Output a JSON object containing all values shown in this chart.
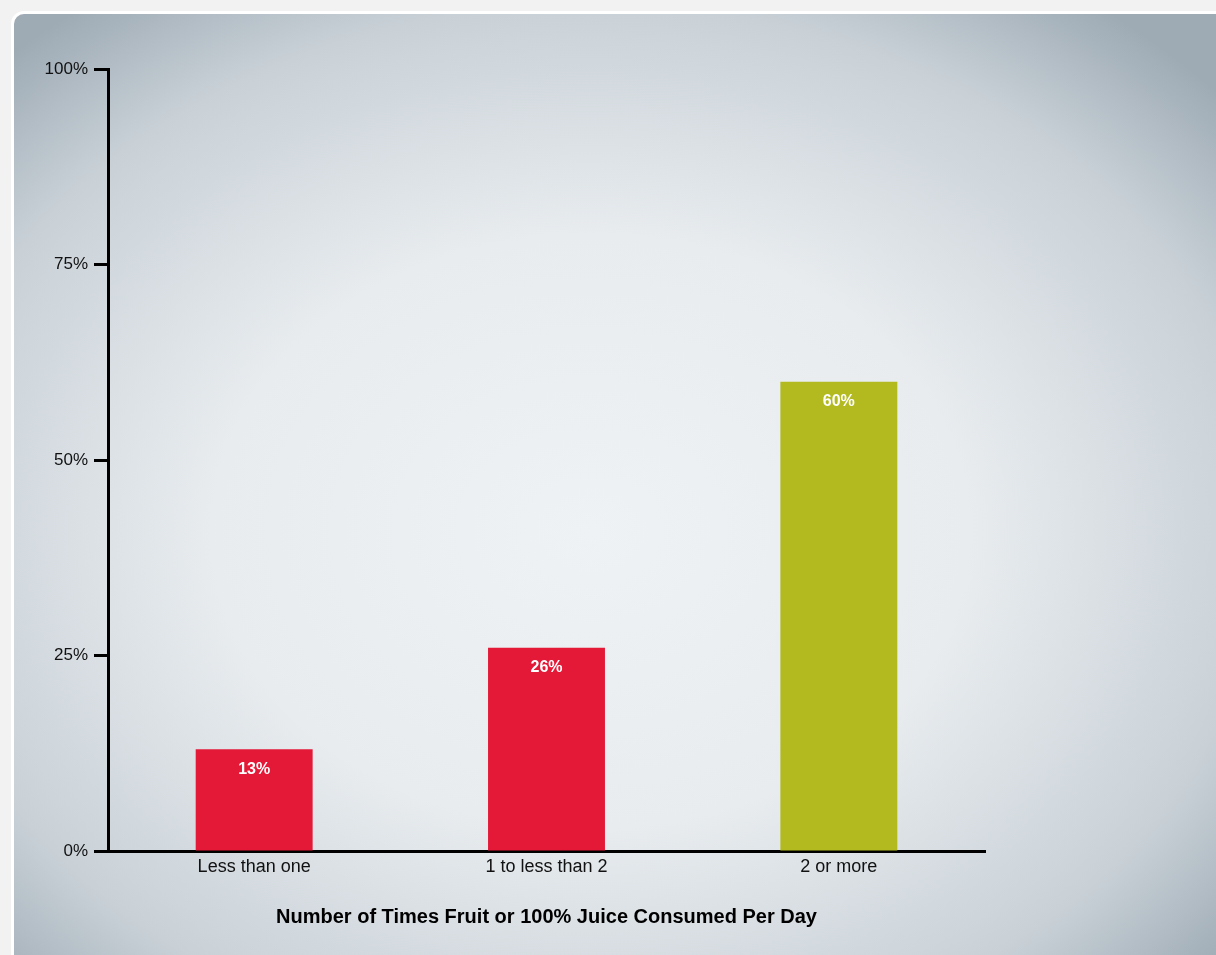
{
  "chart_data": {
    "type": "bar",
    "xlabel": "Number of Times Fruit or 100% Juice Consumed Per Day",
    "categories": [
      "Less than one",
      "1 to less than 2",
      "2 or more"
    ],
    "values": [
      13,
      26,
      60
    ],
    "colors": [
      "#e31937",
      "#e31937",
      "#b2ba20"
    ],
    "value_labels": [
      "13%",
      "26%",
      "60%"
    ],
    "ylim": [
      0,
      100
    ],
    "yticks": [
      {
        "value": 0,
        "label": "0%"
      },
      {
        "value": 25,
        "label": "25%"
      },
      {
        "value": 50,
        "label": "50%"
      },
      {
        "value": 75,
        "label": "75%"
      },
      {
        "value": 100,
        "label": "100%"
      }
    ],
    "grid": false,
    "legend": false
  }
}
